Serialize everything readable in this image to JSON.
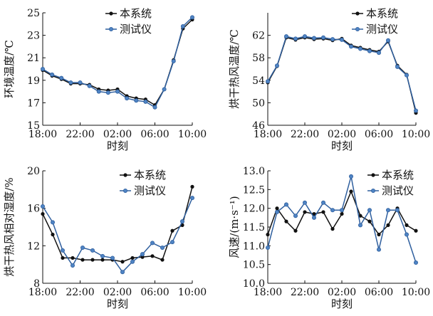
{
  "colors": {
    "black_series": "#111111",
    "blue_series": "#2f5f9e",
    "blue_marker": "#4f84c4"
  },
  "chart_data": [
    {
      "type": "line",
      "ylabel": "环境温度/℃",
      "xlabel": "时刻",
      "ylim": [
        15,
        25
      ],
      "yticks": [
        "15",
        "17",
        "19",
        "21",
        "23",
        "25"
      ],
      "x_tick_labels": [
        "18:00",
        "22:00",
        "02:00",
        "06:00",
        "10:00"
      ],
      "grid": false,
      "legend_position": "top-left",
      "series": [
        {
          "name": "本系统",
          "values": [
            19.9,
            19.4,
            19.1,
            18.7,
            18.7,
            18.6,
            18.2,
            18.1,
            18.2,
            17.6,
            17.4,
            17.3,
            16.8,
            18.2,
            20.8,
            23.6,
            24.4
          ]
        },
        {
          "name": "测试仪",
          "values": [
            20.0,
            19.5,
            19.2,
            18.8,
            18.8,
            18.5,
            18.0,
            17.9,
            18.0,
            17.4,
            17.2,
            17.1,
            16.6,
            18.2,
            20.7,
            23.8,
            24.6
          ]
        }
      ]
    },
    {
      "type": "line",
      "ylabel": "烘干热风温度/℃",
      "xlabel": "时刻",
      "ylim": [
        46,
        66
      ],
      "yticks": [
        "46",
        "50",
        "54",
        "58",
        "62"
      ],
      "x_tick_labels": [
        "18:00",
        "22:00",
        "02:00",
        "06:00",
        "10:00"
      ],
      "grid": false,
      "legend_position": "top-right",
      "series": [
        {
          "name": "本系统",
          "values": [
            53.6,
            56.5,
            61.6,
            61.2,
            61.6,
            61.3,
            61.4,
            61.1,
            61.4,
            60.2,
            59.8,
            59.4,
            59.1,
            60.9,
            56.6,
            55.0,
            48.2
          ]
        },
        {
          "name": "测试仪",
          "values": [
            53.8,
            56.6,
            61.8,
            61.4,
            61.8,
            61.5,
            61.6,
            61.3,
            61.2,
            60.0,
            59.6,
            59.2,
            58.9,
            61.1,
            56.4,
            54.9,
            48.6
          ]
        }
      ]
    },
    {
      "type": "line",
      "ylabel": "烘干热风相对湿度/%",
      "xlabel": "时刻",
      "ylim": [
        8,
        20
      ],
      "yticks": [
        "8",
        "12",
        "16",
        "20"
      ],
      "x_tick_labels": [
        "18:00",
        "22:00",
        "02:00",
        "06:00",
        "10:00"
      ],
      "grid": false,
      "legend_position": "top-right",
      "series": [
        {
          "name": "本系统",
          "values": [
            15.4,
            13.2,
            10.7,
            10.7,
            10.5,
            10.5,
            10.5,
            10.5,
            10.3,
            10.7,
            10.8,
            10.9,
            10.5,
            13.6,
            14.2,
            18.3
          ]
        },
        {
          "name": "测试仪",
          "values": [
            16.2,
            14.5,
            11.5,
            9.9,
            11.8,
            11.5,
            10.9,
            10.7,
            9.2,
            10.3,
            11.1,
            12.3,
            11.8,
            12.4,
            14.6,
            17.1
          ]
        }
      ]
    },
    {
      "type": "line",
      "ylabel": "风速/(m·s⁻¹)",
      "xlabel": "时刻",
      "ylim": [
        10.0,
        13.0
      ],
      "yticks": [
        "10.0",
        "10.5",
        "11.0",
        "11.5",
        "12.0",
        "12.5",
        "13.0"
      ],
      "x_tick_labels": [
        "18:00",
        "22:00",
        "02:00",
        "06:00",
        "10:00"
      ],
      "grid": false,
      "legend_position": "top-right",
      "series": [
        {
          "name": "本系统",
          "values": [
            11.3,
            12.0,
            11.65,
            11.4,
            11.9,
            11.85,
            11.9,
            11.45,
            11.85,
            12.45,
            11.8,
            11.65,
            11.3,
            11.55,
            12.0,
            11.55,
            11.4
          ]
        },
        {
          "name": "测试仪",
          "values": [
            10.95,
            11.9,
            12.1,
            11.8,
            12.15,
            11.75,
            12.15,
            11.95,
            11.95,
            12.85,
            11.55,
            11.95,
            10.9,
            11.95,
            11.95,
            11.3,
            10.55
          ]
        }
      ]
    }
  ]
}
